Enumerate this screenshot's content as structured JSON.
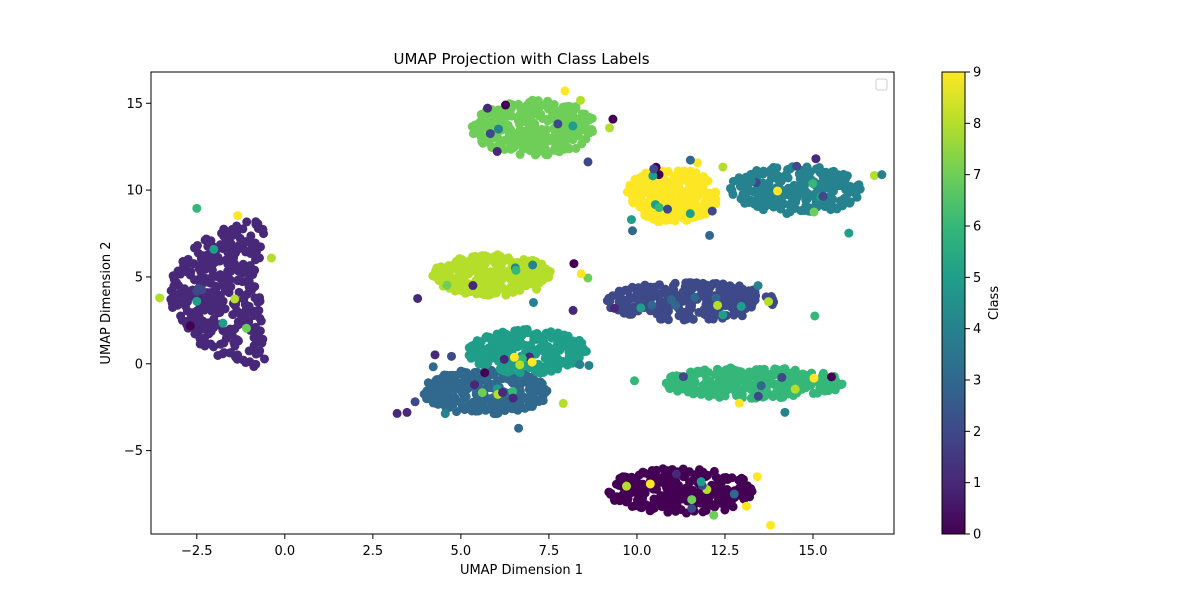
{
  "chart_data": {
    "type": "scatter",
    "title": "UMAP Projection with Class Labels",
    "xlabel": "UMAP Dimension 1",
    "ylabel": "UMAP Dimension 2",
    "xlim": [
      -3.8,
      17.3
    ],
    "ylim": [
      -9.8,
      16.8
    ],
    "x_ticks": [
      -2.5,
      0.0,
      2.5,
      5.0,
      7.5,
      10.0,
      12.5,
      15.0
    ],
    "x_tick_labels": [
      "−2.5",
      "0.0",
      "2.5",
      "5.0",
      "7.5",
      "10.0",
      "12.5",
      "15.0"
    ],
    "y_ticks": [
      -5,
      0,
      5,
      10,
      15
    ],
    "y_tick_labels": [
      "−5",
      "0",
      "5",
      "10",
      "15"
    ],
    "grid": false,
    "legend": {
      "placement": "top-right",
      "entries": []
    },
    "colorbar": {
      "label": "Class",
      "min": 0,
      "max": 9,
      "ticks": [
        0,
        1,
        2,
        3,
        4,
        5,
        6,
        7,
        8,
        9
      ],
      "tick_labels": [
        "0",
        "1",
        "2",
        "3",
        "4",
        "5",
        "6",
        "7",
        "8",
        "9"
      ],
      "colormap": [
        "#440154",
        "#482878",
        "#3e4989",
        "#31688e",
        "#26828e",
        "#1f9e89",
        "#35b779",
        "#6ece58",
        "#b5de2b",
        "#fde725"
      ]
    },
    "clusters": [
      {
        "class": 0,
        "cx": 11.3,
        "cy": -7.3,
        "rx": 2.2,
        "ry": 1.3,
        "n": 260
      },
      {
        "class": 1,
        "cx": -1.6,
        "cy": 4.0,
        "rx": 1.3,
        "ry": 4.2,
        "n": 320
      },
      {
        "class": 2,
        "cx": 11.5,
        "cy": 3.6,
        "rx": 2.4,
        "ry": 1.1,
        "n": 260
      },
      {
        "class": 3,
        "cx": 5.7,
        "cy": -1.6,
        "rx": 1.8,
        "ry": 1.3,
        "n": 260
      },
      {
        "class": 4,
        "cx": 14.5,
        "cy": 10.0,
        "rx": 1.9,
        "ry": 1.4,
        "n": 260
      },
      {
        "class": 5,
        "cx": 6.9,
        "cy": 0.7,
        "rx": 1.7,
        "ry": 1.3,
        "n": 260
      },
      {
        "class": 6,
        "cx": 13.3,
        "cy": -1.1,
        "rx": 2.6,
        "ry": 0.9,
        "n": 280
      },
      {
        "class": 7,
        "cx": 7.1,
        "cy": 13.6,
        "rx": 1.8,
        "ry": 1.6,
        "n": 280
      },
      {
        "class": 8,
        "cx": 5.9,
        "cy": 5.1,
        "rx": 1.7,
        "ry": 1.2,
        "n": 260
      },
      {
        "class": 9,
        "cx": 11.0,
        "cy": 9.7,
        "rx": 1.3,
        "ry": 1.6,
        "n": 260
      }
    ]
  }
}
